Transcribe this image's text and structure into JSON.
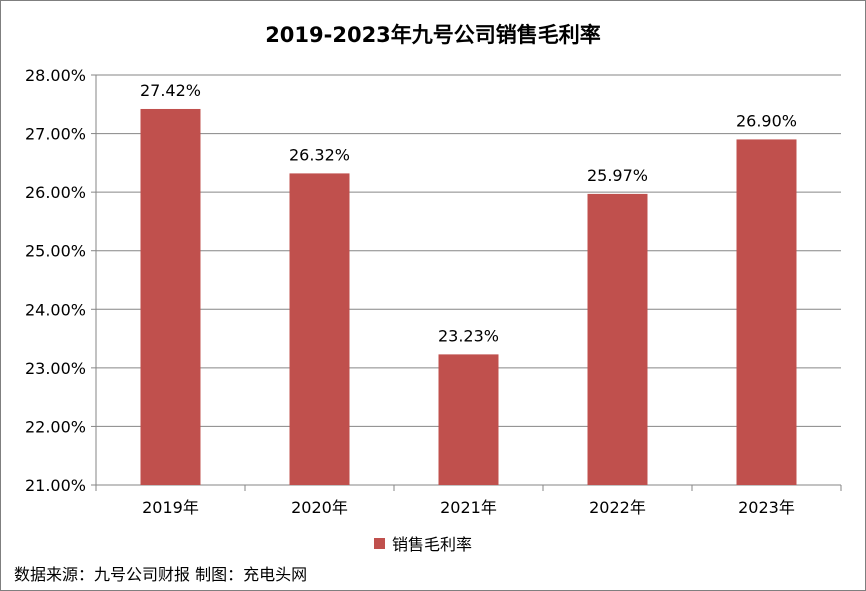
{
  "chart_data": {
    "type": "bar",
    "title": "2019-2023年九号公司销售毛利率",
    "categories": [
      "2019年",
      "2020年",
      "2021年",
      "2022年",
      "2023年"
    ],
    "series": [
      {
        "name": "销售毛利率",
        "values": [
          27.42,
          26.32,
          23.23,
          25.97,
          26.9
        ],
        "labels": [
          "27.42%",
          "26.32%",
          "23.23%",
          "25.97%",
          "26.90%"
        ],
        "color": "#c0504d"
      }
    ],
    "ylim": [
      21,
      28
    ],
    "ytick_step": 1,
    "ytick_labels": [
      "21.00%",
      "22.00%",
      "23.00%",
      "24.00%",
      "25.00%",
      "26.00%",
      "27.00%",
      "28.00%"
    ],
    "grid": true,
    "legend_position": "bottom"
  },
  "source_note": "数据来源：九号公司财报 制图：充电头网"
}
